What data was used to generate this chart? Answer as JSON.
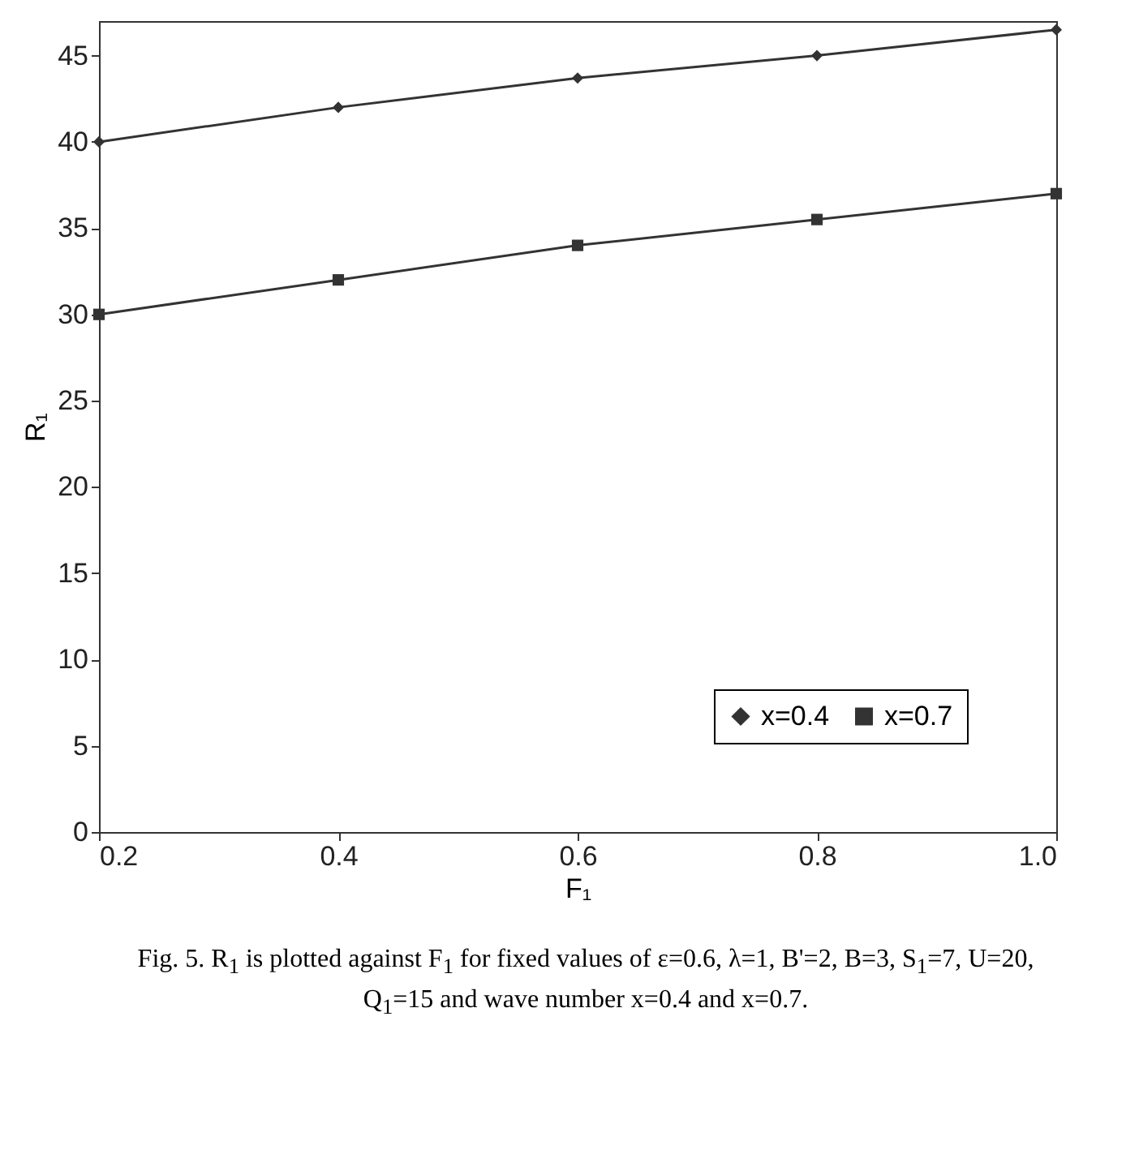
{
  "chart_data": {
    "type": "line",
    "xlabel": "F₁",
    "ylabel": "R₁",
    "x": [
      0.2,
      0.4,
      0.6,
      0.8,
      1.0
    ],
    "series": [
      {
        "name": "x=0.4",
        "color": "#333333",
        "marker": "diamond",
        "values": [
          40,
          42,
          43.7,
          45,
          46.5
        ]
      },
      {
        "name": "x=0.7",
        "color": "#333333",
        "marker": "square",
        "values": [
          30,
          32,
          34,
          35.5,
          37
        ]
      }
    ],
    "xlim": [
      0.2,
      1.0
    ],
    "xticks": [
      0.2,
      0.4,
      0.6,
      0.8,
      {
        "value": 1.0,
        "label": "1.0"
      }
    ],
    "ylim": [
      0,
      47
    ],
    "yticks": [
      0,
      5,
      10,
      15,
      20,
      25,
      30,
      35,
      40,
      45
    ],
    "grid": false,
    "legend": "bottom right",
    "annotations": [
      "Fig. 5. R$_{1}$ is plotted against F$_{1}$ for fixed values of ε=0.6, λ=1, B'=2, B=3, S$_{1}$=7, U=20, Q$_{1}$=15 and wave number x=0.4 and x=0.7."
    ]
  }
}
